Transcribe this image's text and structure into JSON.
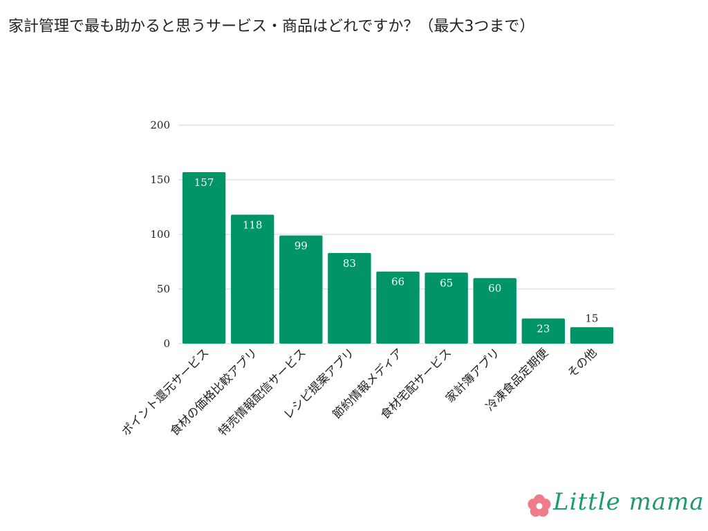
{
  "title": "家計管理で最も助かると思うサービス・商品はどれですか？（最大3つまで）",
  "brand": {
    "name": "Little mama",
    "text_color": "#1e9a6e",
    "flower_color": "#f07b8a"
  },
  "chart_data": {
    "type": "bar",
    "title": "家計管理で最も助かると思うサービス・商品はどれですか？（最大3つまで）",
    "categories": [
      "ポイント還元サービス",
      "食材の価格比較アプリ",
      "特売情報配信サービス",
      "レシピ提案アプリ",
      "節約情報メディア",
      "食材宅配サービス",
      "家計簿アプリ",
      "冷凍食品定期便",
      "その他"
    ],
    "values": [
      157,
      118,
      99,
      83,
      66,
      65,
      60,
      23,
      15
    ],
    "value_labels": [
      "157",
      "118",
      "99",
      "83",
      "66",
      "65",
      "60",
      "23",
      "15"
    ],
    "ylim": [
      0,
      200
    ],
    "yticks": [
      0,
      50,
      100,
      150,
      200
    ],
    "ytick_labels": [
      "0",
      "50",
      "100",
      "150",
      "200"
    ],
    "grid": true,
    "legend": "none",
    "bar_color": "#009468",
    "grid_color": "#d0d0d0"
  }
}
